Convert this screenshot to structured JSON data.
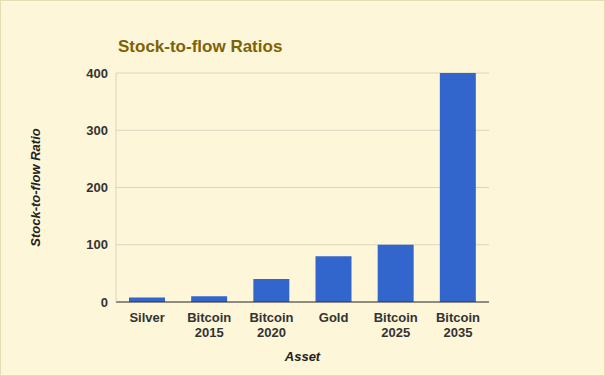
{
  "chart_data": {
    "type": "bar",
    "title": "Stock-to-flow Ratios",
    "x_label": "Asset",
    "y_label": "Stock-to-flow Ratio",
    "categories": [
      "Silver",
      "Bitcoin 2015",
      "Bitcoin 2020",
      "Gold",
      "Bitcoin 2025",
      "Bitcoin 2035"
    ],
    "values": [
      8,
      10,
      40,
      80,
      100,
      400
    ],
    "color": "#3366cc",
    "ylim": [
      0,
      400
    ],
    "yticks": [
      0,
      100,
      200,
      300,
      400
    ],
    "grid": true
  }
}
